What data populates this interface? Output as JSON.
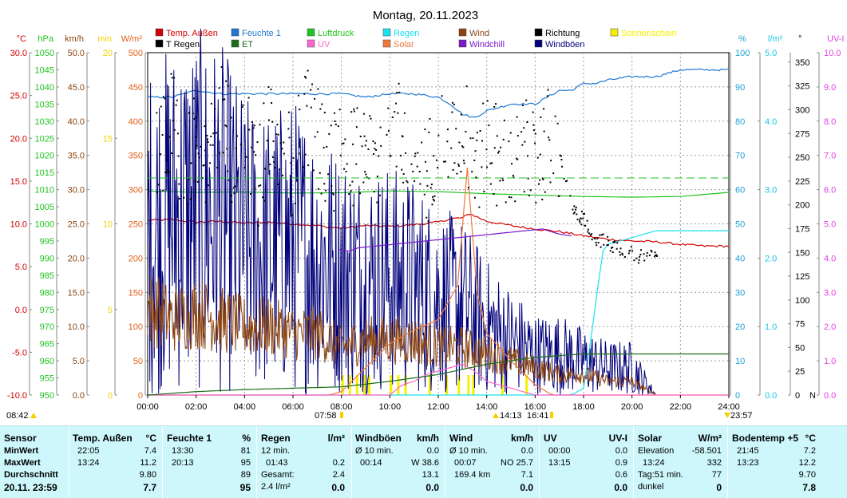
{
  "title": "Montag, 20.11.2023",
  "legend": [
    {
      "label": "Temp. Außen",
      "color": "#d40000"
    },
    {
      "label": "Feuchte 1",
      "color": "#1e78d4"
    },
    {
      "label": "Luftdruck",
      "color": "#22c322"
    },
    {
      "label": "Regen",
      "color": "#19e1f0"
    },
    {
      "label": "Wind",
      "color": "#8b4513"
    },
    {
      "label": "Richtung",
      "color": "#000000"
    },
    {
      "label": "Sonnenschein",
      "color": "#f5f000"
    },
    {
      "label": "T Regen",
      "color": "#000000"
    },
    {
      "label": "ET",
      "color": "#1a6e1a"
    },
    {
      "label": "UV",
      "color": "#ff66cc"
    },
    {
      "label": "Solar",
      "color": "#f0783c"
    },
    {
      "label": "Windchill",
      "color": "#7a17c8"
    },
    {
      "label": "Windböen",
      "color": "#00007a"
    }
  ],
  "axes_left": [
    {
      "unit": "°C",
      "color": "#d40000",
      "ticks": [
        "30.0",
        "25.0",
        "20.0",
        "15.0",
        "10.0",
        "5.0",
        "0.0",
        "-5.0",
        "-10.0"
      ]
    },
    {
      "unit": "hPa",
      "color": "#22c322",
      "ticks": [
        "1050",
        "1045",
        "1040",
        "1035",
        "1030",
        "1025",
        "1020",
        "1015",
        "1010",
        "1005",
        "1000",
        "995",
        "990",
        "985",
        "980",
        "975",
        "970",
        "965",
        "960",
        "955",
        "950"
      ]
    },
    {
      "unit": "km/h",
      "color": "#8b4513",
      "ticks": [
        "50.0",
        "45.0",
        "40.0",
        "35.0",
        "30.0",
        "25.0",
        "20.0",
        "15.0",
        "10.0",
        "5.0",
        "0.0"
      ]
    },
    {
      "unit": "min",
      "color": "#f5d000",
      "ticks": [
        "20",
        "15",
        "10",
        "5",
        "0"
      ]
    },
    {
      "unit": "W/m²",
      "color": "#e0601c",
      "ticks": [
        "500",
        "450",
        "400",
        "350",
        "300",
        "250",
        "200",
        "150",
        "100",
        "50",
        "0"
      ]
    }
  ],
  "axes_right": [
    {
      "unit": "%",
      "color": "#1e9fd4",
      "ticks": [
        "100",
        "90",
        "80",
        "70",
        "60",
        "50",
        "40",
        "30",
        "20",
        "10",
        "0"
      ]
    },
    {
      "unit": "l/m²",
      "color": "#19c8e6",
      "ticks": [
        "5.0",
        "4.0",
        "3.0",
        "2.0",
        "1.0",
        "0.0"
      ]
    },
    {
      "unit": "°",
      "color": "#000000",
      "ticks": [
        "350",
        "325",
        "300",
        "275",
        "250",
        "225",
        "200",
        "175",
        "150",
        "125",
        "100",
        "75",
        "50",
        "25",
        "0"
      ],
      "bottom_label": "N"
    },
    {
      "unit": "UV-I",
      "color": "#e040e0",
      "ticks": [
        "10.0",
        "9.0",
        "8.0",
        "7.0",
        "6.0",
        "5.0",
        "4.0",
        "3.0",
        "2.0",
        "1.0",
        "0.0"
      ]
    }
  ],
  "x_ticks": [
    "00:00",
    "02:00",
    "04:00",
    "06:00",
    "08:00",
    "10:00",
    "12:00",
    "14:00",
    "16:00",
    "18:00",
    "20:00",
    "22:00",
    "24:00"
  ],
  "markers": {
    "start": "08:42",
    "sunrise": "07:58",
    "noon": "14:13",
    "sunset": "16:41",
    "end": "23:57"
  },
  "chart_data": {
    "type": "line",
    "title": "Montag, 20.11.2023",
    "x_range": [
      "00:00",
      "24:00"
    ],
    "series": [
      {
        "name": "Temp. Außen",
        "unit": "°C",
        "color": "#d40000",
        "x": [
          0,
          1,
          2,
          3,
          4,
          5,
          6,
          7,
          7.5,
          8,
          9,
          10,
          11,
          12,
          12.5,
          13,
          13.3,
          14,
          15,
          16,
          17,
          18,
          19,
          20,
          21,
          22,
          23,
          24
        ],
        "values": [
          10.4,
          10.5,
          10.2,
          10.3,
          10.1,
          10.2,
          10.0,
          9.8,
          9.6,
          9.5,
          9.8,
          9.7,
          9.9,
          10.2,
          10.6,
          10.7,
          11.2,
          10.3,
          9.8,
          9.4,
          9.1,
          8.6,
          8.2,
          8.0,
          7.9,
          7.6,
          7.4,
          7.4
        ]
      },
      {
        "name": "Feuchte 1",
        "unit": "%",
        "color": "#1e78d4",
        "x": [
          0,
          1,
          2,
          3,
          4,
          5,
          6,
          7,
          8,
          9,
          10,
          11,
          12,
          12.5,
          13,
          13.5,
          14,
          15,
          15.5,
          16,
          17,
          17.5,
          18,
          18.5,
          19,
          20,
          21,
          22,
          23,
          24
        ],
        "values": [
          87,
          87,
          89,
          88,
          88,
          88,
          88,
          88,
          88,
          87,
          88,
          88,
          87,
          85,
          82,
          81,
          83,
          85,
          85,
          85,
          89,
          89,
          91,
          91,
          92,
          93,
          93,
          95,
          95,
          95
        ]
      },
      {
        "name": "Luftdruck",
        "unit": "hPa",
        "color": "#22c322",
        "x": [
          0,
          2,
          4,
          6,
          8,
          10,
          12,
          14,
          16,
          18,
          20,
          22,
          24
        ],
        "values": [
          1009.6,
          1009.2,
          1009.3,
          1009.0,
          1009.1,
          1009.6,
          1009.4,
          1008.8,
          1008.4,
          1008.0,
          1007.8,
          1008.0,
          1009.2
        ]
      },
      {
        "name": "Regen",
        "unit": "l/m²",
        "color": "#19e1f0",
        "x": [
          0,
          17.5,
          18,
          18.3,
          18.6,
          18.8,
          19,
          20,
          21,
          22,
          23,
          24
        ],
        "values": [
          0,
          0,
          0.1,
          0.8,
          1.6,
          2.1,
          2.2,
          2.3,
          2.4,
          2.4,
          2.4,
          2.4
        ]
      },
      {
        "name": "Windböen",
        "unit": "km/h",
        "color": "#00007a",
        "x": [
          0,
          1,
          2,
          3,
          4,
          5,
          6,
          7,
          8,
          9,
          10,
          11,
          12,
          13,
          14,
          15,
          16,
          17,
          18,
          19,
          20,
          21
        ],
        "values": [
          24,
          26,
          27,
          26,
          22,
          21,
          22,
          20,
          18,
          17,
          17,
          16,
          14,
          13,
          10,
          8,
          6,
          6,
          5,
          4,
          4,
          0
        ]
      },
      {
        "name": "Wind",
        "unit": "km/h",
        "color": "#8b4513",
        "x": [
          0,
          1,
          2,
          3,
          4,
          5,
          6,
          7,
          8,
          9,
          10,
          11,
          12,
          13,
          14,
          15,
          16,
          17,
          18,
          19,
          20,
          21
        ],
        "values": [
          13,
          11,
          12,
          11,
          10,
          10,
          9,
          9,
          7,
          8,
          8,
          8,
          7,
          7,
          6,
          5,
          4,
          3,
          3,
          2,
          2,
          0
        ]
      },
      {
        "name": "Solar",
        "unit": "W/m²",
        "color": "#f0783c",
        "x": [
          0,
          7.5,
          8,
          9,
          10,
          11,
          12,
          12.8,
          13.2,
          13.6,
          14,
          15,
          16,
          16.7,
          24
        ],
        "values": [
          0,
          0,
          5,
          40,
          75,
          95,
          110,
          160,
          332,
          150,
          90,
          50,
          15,
          0,
          0
        ]
      },
      {
        "name": "UV",
        "unit": "UV-I",
        "color": "#ff66cc",
        "x": [
          0,
          10,
          10.5,
          11,
          11.5,
          12,
          12.5,
          13,
          13.5,
          14,
          15,
          16,
          24
        ],
        "values": [
          0,
          0,
          0.3,
          0.4,
          0.6,
          0.7,
          0.8,
          0.9,
          0.7,
          0.4,
          0.2,
          0,
          0
        ]
      },
      {
        "name": "ET",
        "unit": "l/m²",
        "color": "#1a6e1a",
        "x": [
          0,
          2,
          4,
          6,
          8,
          10,
          12,
          14,
          16,
          18,
          20,
          24
        ],
        "values": [
          0,
          0.05,
          0.08,
          0.1,
          0.12,
          0.2,
          0.3,
          0.45,
          0.55,
          0.6,
          0.6,
          0.6
        ]
      },
      {
        "name": "Windchill",
        "unit": "°C",
        "color": "#7a17c8",
        "x": [
          7.9,
          8.3,
          8.7,
          16.3,
          17,
          17.5
        ],
        "values": [
          7.0,
          6.8,
          7.2,
          9.4,
          8.8,
          8.6
        ]
      },
      {
        "name": "Richtung",
        "unit": "°",
        "color": "#000000",
        "type": "scatter",
        "x": [
          0.5,
          1,
          1.5,
          2,
          2.5,
          3,
          3.5,
          4,
          4.5,
          5,
          5.5,
          6,
          6.5,
          7,
          7.5,
          8,
          8.5,
          9,
          9.5,
          10,
          10.5,
          11,
          11.5,
          12,
          12.5,
          13,
          13.5,
          14,
          14.5,
          15,
          15.5,
          16,
          16.5,
          17,
          17.5,
          18,
          18.5,
          19,
          19.5,
          20,
          20.5,
          21
        ],
        "values": [
          260,
          300,
          230,
          270,
          240,
          310,
          250,
          280,
          220,
          290,
          260,
          240,
          300,
          270,
          230,
          280,
          250,
          260,
          240,
          300,
          270,
          250,
          230,
          280,
          260,
          290,
          240,
          270,
          250,
          230,
          260,
          240,
          270,
          250,
          195,
          185,
          165,
          160,
          155,
          150,
          145,
          145
        ]
      }
    ]
  },
  "stats": {
    "row_labels": [
      "Sensor",
      "MinWert",
      "MaxWert",
      "Durchschnitt",
      "20.11. 23:59"
    ],
    "temp": {
      "header": "Temp. Außen",
      "unit": "°C",
      "min_time": "22:05",
      "min": "7.4",
      "max_time": "13:24",
      "max": "11.2",
      "avg": "9.80",
      "now": "7.7"
    },
    "hum": {
      "header": "Feuchte 1",
      "unit": "%",
      "min_time": "13:30",
      "min": "81",
      "max_time": "20:13",
      "max": "95",
      "avg": "89",
      "now": "95"
    },
    "rain": {
      "header": "Regen",
      "unit": "l/m²",
      "r1": "12 min.",
      "r2a": "01:43",
      "r2b": "0.2",
      "r3a": "Gesamt:",
      "r3b": "2.4",
      "r4a": "2.4 l/m²",
      "r4b": "0.0"
    },
    "gust": {
      "header": "Windböen",
      "unit": "km/h",
      "r1a": "Ø 10 min.",
      "r1b": "0.0",
      "r2a": "00:14",
      "r2b": "W 38.6",
      "r3b": "13.1",
      "now": "0.0"
    },
    "wind": {
      "header": "Wind",
      "unit": "km/h",
      "r1a": "Ø 10 min.",
      "r1b": "0.0",
      "r2a": "00:07",
      "r2b": "NO 25.7",
      "r3a": "169.4 km",
      "r3b": "7.1",
      "now": "0.0"
    },
    "uv": {
      "header": "UV",
      "unit": "UV-I",
      "r1a": "00:00",
      "r1b": "0.0",
      "r2a": "13:15",
      "r2b": "0.9",
      "r3b": "0.6",
      "now": "0.0"
    },
    "solar": {
      "header": "Solar",
      "unit": "W/m²",
      "r1a": "Elevation",
      "r1b": "-58.501",
      "r2a": "13:24",
      "r2b": "332",
      "r3a": "Tag:51 min.",
      "r3b": "77",
      "r4a": "dunkel",
      "r4b": "0"
    },
    "soil": {
      "header": "Bodentemp +5",
      "unit": "°C",
      "r1a": "21:45",
      "r1b": "7.2",
      "r2a": "13:23",
      "r2b": "12.2",
      "r3b": "9.70",
      "now": "7.8"
    }
  }
}
